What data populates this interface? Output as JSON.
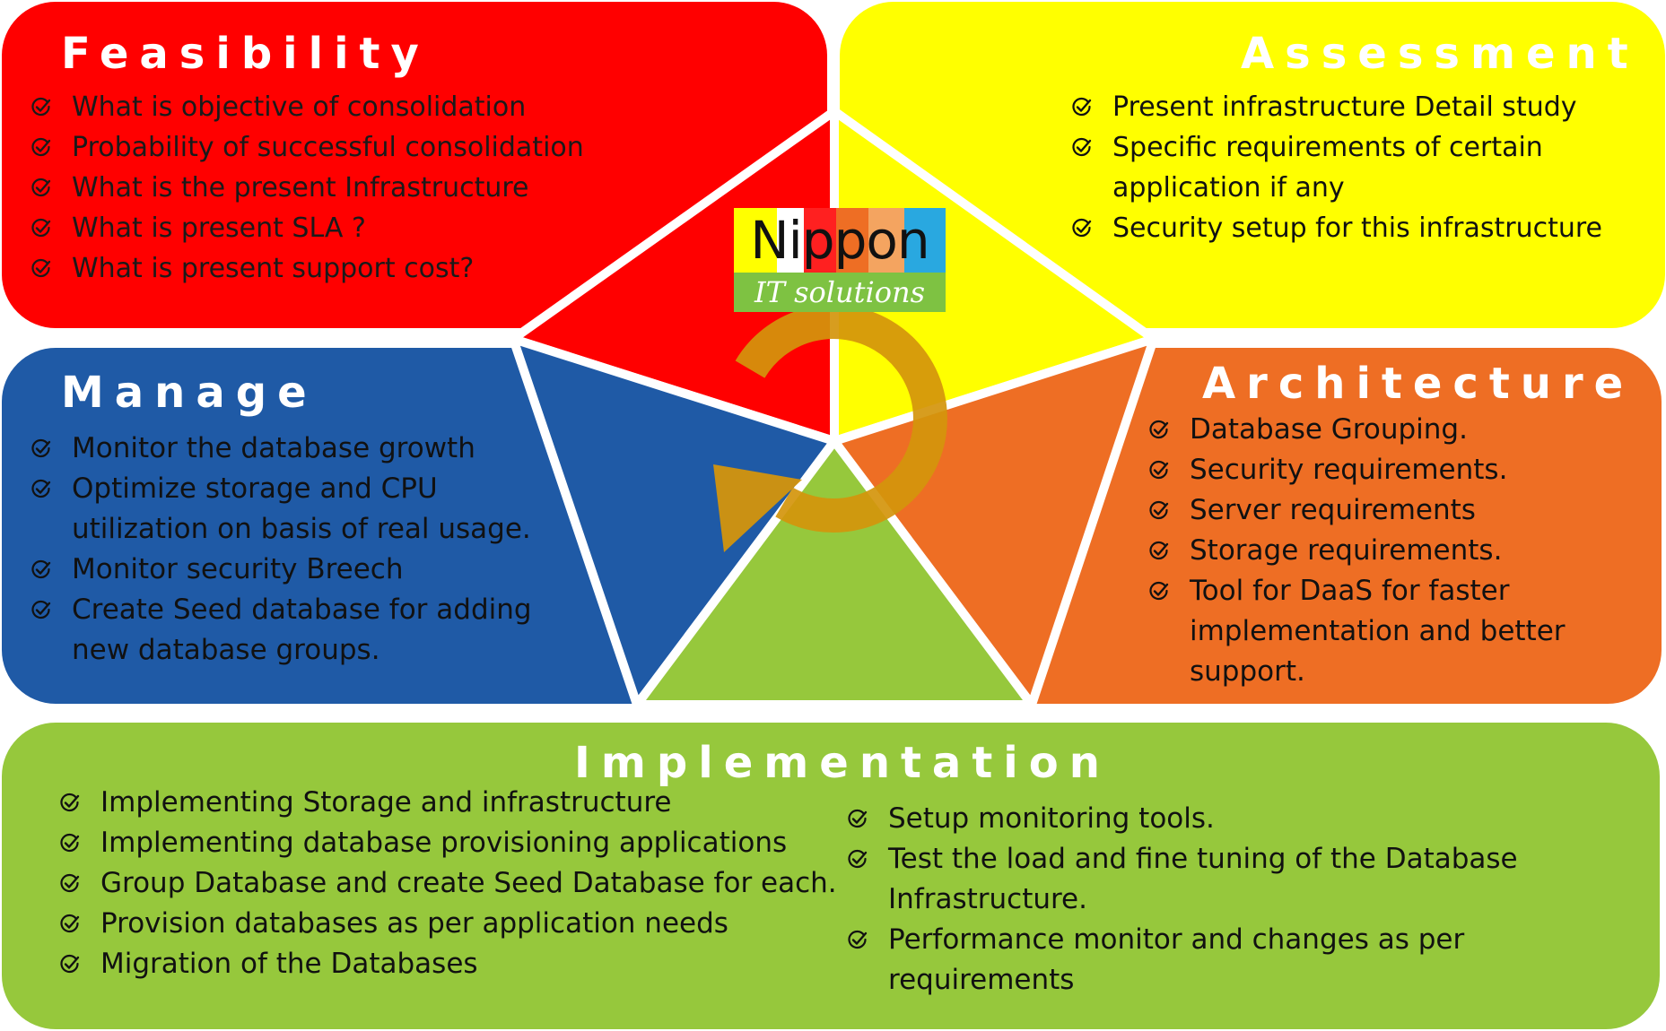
{
  "colors": {
    "feasibility": "#FF0000",
    "assessment": "#FFFF00",
    "manage": "#1F5AA6",
    "architecture": "#EE6E24",
    "implementation": "#96C83C",
    "cycle_arrow": "#D4950C"
  },
  "logo": {
    "word": "Nippon",
    "tagline": "IT solutions"
  },
  "feasibility": {
    "title": "Feasibility",
    "items": [
      "What is objective of consolidation",
      "Probability of successful consolidation",
      "What is the present Infrastructure",
      "What is present SLA ?",
      "What is present support cost?"
    ]
  },
  "assessment": {
    "title": "Assessment",
    "items": [
      "Present infrastructure Detail study",
      "Specific requirements of certain application if any",
      "Security setup for this infrastructure"
    ]
  },
  "manage": {
    "title": "Manage",
    "items": [
      "Monitor the database growth",
      "Optimize storage and CPU utilization on basis of real usage.",
      "Monitor security Breech",
      "Create Seed database for adding new database groups."
    ]
  },
  "architecture": {
    "title": "Architecture",
    "items": [
      "Database Grouping.",
      "Security requirements.",
      "Server requirements",
      "Storage requirements.",
      "Tool for DaaS for faster implementation and better support."
    ]
  },
  "implementation": {
    "title": "Implementation",
    "left_items": [
      "Implementing Storage and infrastructure",
      "Implementing database provisioning applications",
      "Group Database and create Seed Database for each.",
      "Provision databases as per application needs",
      "Migration of the Databases"
    ],
    "right_items": [
      "Setup monitoring tools.",
      "Test the load and fine tuning of the Database Infrastructure.",
      "Performance monitor and changes as per requirements"
    ]
  },
  "icons": {
    "checkmark": "check-circle-icon",
    "cycle": "cycle-arrow-icon"
  }
}
